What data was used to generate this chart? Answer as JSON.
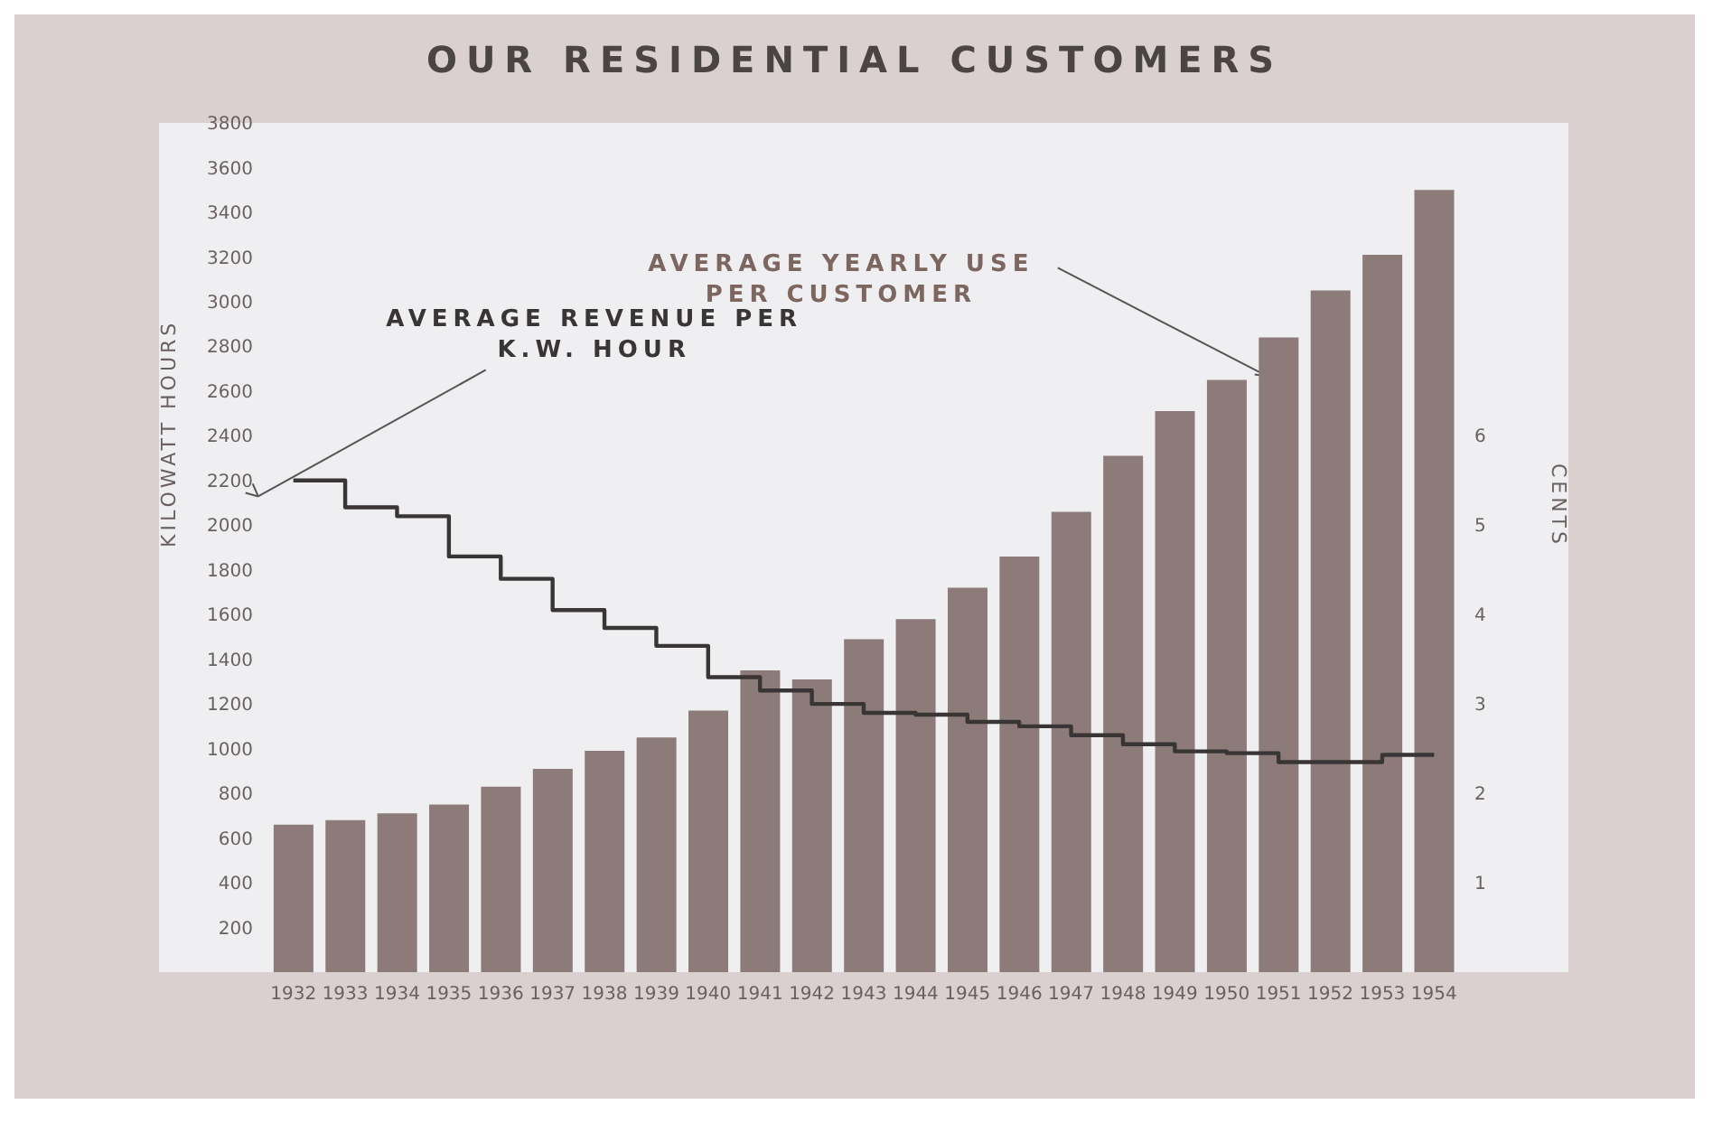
{
  "chart_data": {
    "type": "bar",
    "title": "OUR RESIDENTIAL CUSTOMERS",
    "ylabel": "KILOWATT HOURS",
    "y2label": "CENTS",
    "categories": [
      "1932",
      "1933",
      "1934",
      "1935",
      "1936",
      "1937",
      "1938",
      "1939",
      "1940",
      "1941",
      "1942",
      "1943",
      "1944",
      "1945",
      "1946",
      "1947",
      "1948",
      "1949",
      "1950",
      "1951",
      "1952",
      "1953",
      "1954"
    ],
    "series": [
      {
        "name": "AVERAGE YEARLY USE PER CUSTOMER",
        "color": "#8c7b78",
        "values": [
          660,
          680,
          710,
          750,
          830,
          910,
          990,
          1050,
          1170,
          1350,
          1310,
          1490,
          1580,
          1720,
          1860,
          2060,
          2310,
          2510,
          2650,
          2840,
          3050,
          3210,
          3500
        ]
      },
      {
        "name": "AVERAGE REVENUE PER K.W. HOUR",
        "type": "step",
        "axis": "y2",
        "color": "#3a3535",
        "values": [
          5.5,
          5.2,
          5.1,
          4.65,
          4.4,
          4.05,
          3.85,
          3.65,
          3.3,
          3.15,
          3.0,
          2.9,
          2.88,
          2.8,
          2.75,
          2.65,
          2.55,
          2.47,
          2.45,
          2.35,
          2.35,
          2.43,
          2.43
        ]
      }
    ],
    "ylim": [
      0,
      3800
    ],
    "yticks": [
      200,
      400,
      600,
      800,
      1000,
      1200,
      1400,
      1600,
      1800,
      2000,
      2200,
      2400,
      2600,
      2800,
      3000,
      3200,
      3400,
      3600,
      3800
    ],
    "y2lim": [
      0,
      9.5
    ],
    "y2ticks": [
      1,
      2,
      3,
      4,
      5,
      6
    ],
    "marker": "none",
    "line_style": "solid"
  }
}
